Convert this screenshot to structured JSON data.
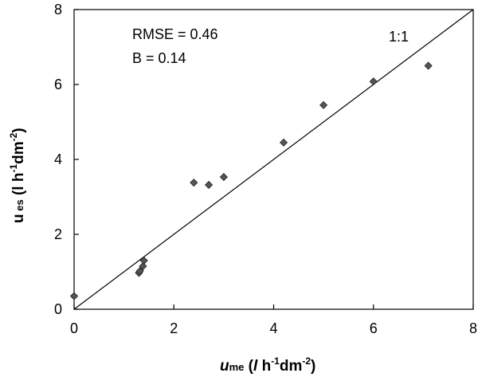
{
  "chart_data": {
    "type": "scatter",
    "xlim": [
      0,
      8
    ],
    "ylim": [
      0,
      8
    ],
    "xticks": [
      "0",
      "2",
      "4",
      "6",
      "8"
    ],
    "yticks": [
      "0",
      "2",
      "4",
      "6",
      "8"
    ],
    "grid": false,
    "reference_line": {
      "label": "1:1",
      "from": [
        0,
        0
      ],
      "to": [
        8,
        8
      ]
    },
    "annotations": {
      "rmse": "RMSE = 0.46",
      "bias": "B = 0.14"
    },
    "xlabel": {
      "main": "u",
      "sub": "me",
      "open": " (",
      "unit_l": "l",
      "unit_h": " h",
      "exp1": "-1",
      "unit_dm": "dm",
      "exp2": "-2",
      "close": ")"
    },
    "ylabel": {
      "main": "u",
      "sub": " es",
      "open": "  (l h",
      "exp1": "-1",
      "unit_dm": "dm",
      "exp2": "-2",
      "close": ")"
    },
    "marker_color": "#555555",
    "points": [
      {
        "x": 0.0,
        "y": 0.35
      },
      {
        "x": 1.3,
        "y": 0.97
      },
      {
        "x": 1.32,
        "y": 1.02
      },
      {
        "x": 1.38,
        "y": 1.15
      },
      {
        "x": 1.4,
        "y": 1.3
      },
      {
        "x": 2.4,
        "y": 3.38
      },
      {
        "x": 2.7,
        "y": 3.32
      },
      {
        "x": 3.0,
        "y": 3.53
      },
      {
        "x": 4.2,
        "y": 4.45
      },
      {
        "x": 5.0,
        "y": 5.45
      },
      {
        "x": 6.0,
        "y": 6.08
      },
      {
        "x": 7.1,
        "y": 6.5
      }
    ]
  }
}
